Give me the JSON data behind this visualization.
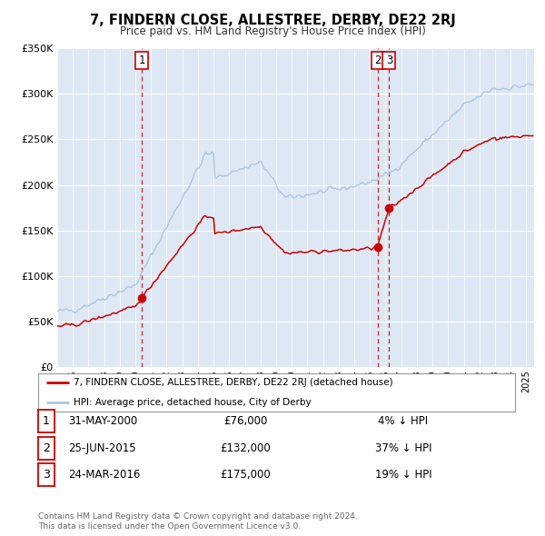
{
  "title": "7, FINDERN CLOSE, ALLESTREE, DERBY, DE22 2RJ",
  "subtitle": "Price paid vs. HM Land Registry's House Price Index (HPI)",
  "ylim": [
    0,
    350000
  ],
  "yticks": [
    0,
    50000,
    100000,
    150000,
    200000,
    250000,
    300000,
    350000
  ],
  "ytick_labels": [
    "£0",
    "£50K",
    "£100K",
    "£150K",
    "£200K",
    "£250K",
    "£300K",
    "£350K"
  ],
  "xlim_start": 1995.0,
  "xlim_end": 2025.5,
  "background_color": "#ffffff",
  "plot_bg_color": "#dde8f4",
  "grid_color": "#ffffff",
  "sale_color": "#cc0000",
  "hpi_color": "#aac4e0",
  "transaction_markers": [
    {
      "date_float": 2000.417,
      "price": 76000,
      "label": "1"
    },
    {
      "date_float": 2015.486,
      "price": 132000,
      "label": "2"
    },
    {
      "date_float": 2016.23,
      "price": 175000,
      "label": "3"
    }
  ],
  "vline_dates": [
    2000.417,
    2015.486,
    2016.23
  ],
  "legend_sale_label": "7, FINDERN CLOSE, ALLESTREE, DERBY, DE22 2RJ (detached house)",
  "legend_hpi_label": "HPI: Average price, detached house, City of Derby",
  "table_rows": [
    {
      "num": "1",
      "date": "31-MAY-2000",
      "price": "£76,000",
      "pct": "4% ↓ HPI"
    },
    {
      "num": "2",
      "date": "25-JUN-2015",
      "price": "£132,000",
      "pct": "37% ↓ HPI"
    },
    {
      "num": "3",
      "date": "24-MAR-2016",
      "price": "£175,000",
      "pct": "19% ↓ HPI"
    }
  ],
  "footnote1": "Contains HM Land Registry data © Crown copyright and database right 2024.",
  "footnote2": "This data is licensed under the Open Government Licence v3.0."
}
